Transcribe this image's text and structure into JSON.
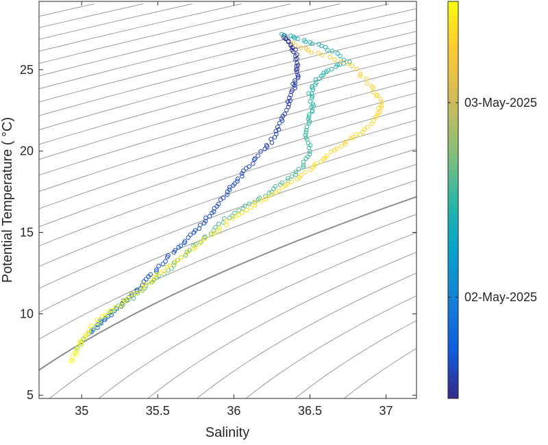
{
  "chart_data": {
    "type": "scatter",
    "title": "",
    "xlabel": "Salinity",
    "ylabel": "Potential Temperature ( °C)",
    "xlim": [
      34.72,
      37.2
    ],
    "ylim": [
      4.8,
      29.2
    ],
    "x_ticks": [
      "35",
      "35.5",
      "36",
      "36.5",
      "37"
    ],
    "x_tick_values": [
      35,
      35.5,
      36,
      36.5,
      37
    ],
    "y_ticks": [
      "5",
      "10",
      "15",
      "20",
      "25"
    ],
    "y_tick_values": [
      5,
      10,
      15,
      20,
      25
    ],
    "grid": false,
    "background_lines": "isopycnal contours (gray)",
    "highlighted_contour": true,
    "colorbar": {
      "colormap": "parula",
      "ticks": [
        "02-May-2025",
        "03-May-2025"
      ],
      "tick_fractions": [
        0.255,
        0.745
      ],
      "location": "right"
    },
    "series": [
      {
        "note": "early profile (dark blue), surface to depth",
        "time_fraction_start": 0.02,
        "time_fraction_end": 0.12,
        "points": [
          [
            36.33,
            27.1
          ],
          [
            36.37,
            26.6
          ],
          [
            36.4,
            26.1
          ],
          [
            36.42,
            25.3
          ],
          [
            36.42,
            24.6
          ],
          [
            36.39,
            23.9
          ],
          [
            36.36,
            23.0
          ],
          [
            36.32,
            22.0
          ],
          [
            36.28,
            21.0
          ],
          [
            36.2,
            20.1
          ],
          [
            36.1,
            19.1
          ],
          [
            36.02,
            18.2
          ],
          [
            35.95,
            17.3
          ],
          [
            35.87,
            16.3
          ],
          [
            35.78,
            15.4
          ],
          [
            35.68,
            14.5
          ],
          [
            35.58,
            13.6
          ],
          [
            35.48,
            12.6
          ],
          [
            35.38,
            11.6
          ],
          [
            35.3,
            10.9
          ],
          [
            35.2,
            10.1
          ],
          [
            35.12,
            9.4
          ],
          [
            35.05,
            8.7
          ]
        ]
      },
      {
        "note": "mid profile (cyan/green)",
        "time_fraction_start": 0.45,
        "time_fraction_end": 0.62,
        "points": [
          [
            36.32,
            27.2
          ],
          [
            36.45,
            26.8
          ],
          [
            36.6,
            26.4
          ],
          [
            36.75,
            25.5
          ],
          [
            36.62,
            25.0
          ],
          [
            36.55,
            24.4
          ],
          [
            36.5,
            23.6
          ],
          [
            36.52,
            22.8
          ],
          [
            36.5,
            22.0
          ],
          [
            36.48,
            21.0
          ],
          [
            36.5,
            20.0
          ],
          [
            36.45,
            19.0
          ],
          [
            36.35,
            18.2
          ],
          [
            36.22,
            17.4
          ],
          [
            36.08,
            16.6
          ],
          [
            35.95,
            15.8
          ],
          [
            35.82,
            14.8
          ],
          [
            35.7,
            13.8
          ],
          [
            35.58,
            12.8
          ],
          [
            35.45,
            11.9
          ],
          [
            35.33,
            11.0
          ],
          [
            35.2,
            10.2
          ],
          [
            35.1,
            9.3
          ],
          [
            35.0,
            8.3
          ],
          [
            34.96,
            7.5
          ]
        ]
      },
      {
        "note": "late profile (yellow/orange)",
        "time_fraction_start": 0.88,
        "time_fraction_end": 1.0,
        "points": [
          [
            36.38,
            26.6
          ],
          [
            36.55,
            26.0
          ],
          [
            36.78,
            25.2
          ],
          [
            36.9,
            24.0
          ],
          [
            36.97,
            23.0
          ],
          [
            36.95,
            22.2
          ],
          [
            36.85,
            21.2
          ],
          [
            36.72,
            20.5
          ],
          [
            36.6,
            19.6
          ],
          [
            36.5,
            18.8
          ],
          [
            36.36,
            18.0
          ],
          [
            36.22,
            17.2
          ],
          [
            36.08,
            16.4
          ],
          [
            35.94,
            15.5
          ],
          [
            35.8,
            14.5
          ],
          [
            35.66,
            13.5
          ],
          [
            35.52,
            12.5
          ],
          [
            35.4,
            11.6
          ],
          [
            35.27,
            10.7
          ],
          [
            35.13,
            9.8
          ],
          [
            35.02,
            8.7
          ],
          [
            34.97,
            7.8
          ],
          [
            34.93,
            6.9
          ]
        ]
      }
    ]
  }
}
